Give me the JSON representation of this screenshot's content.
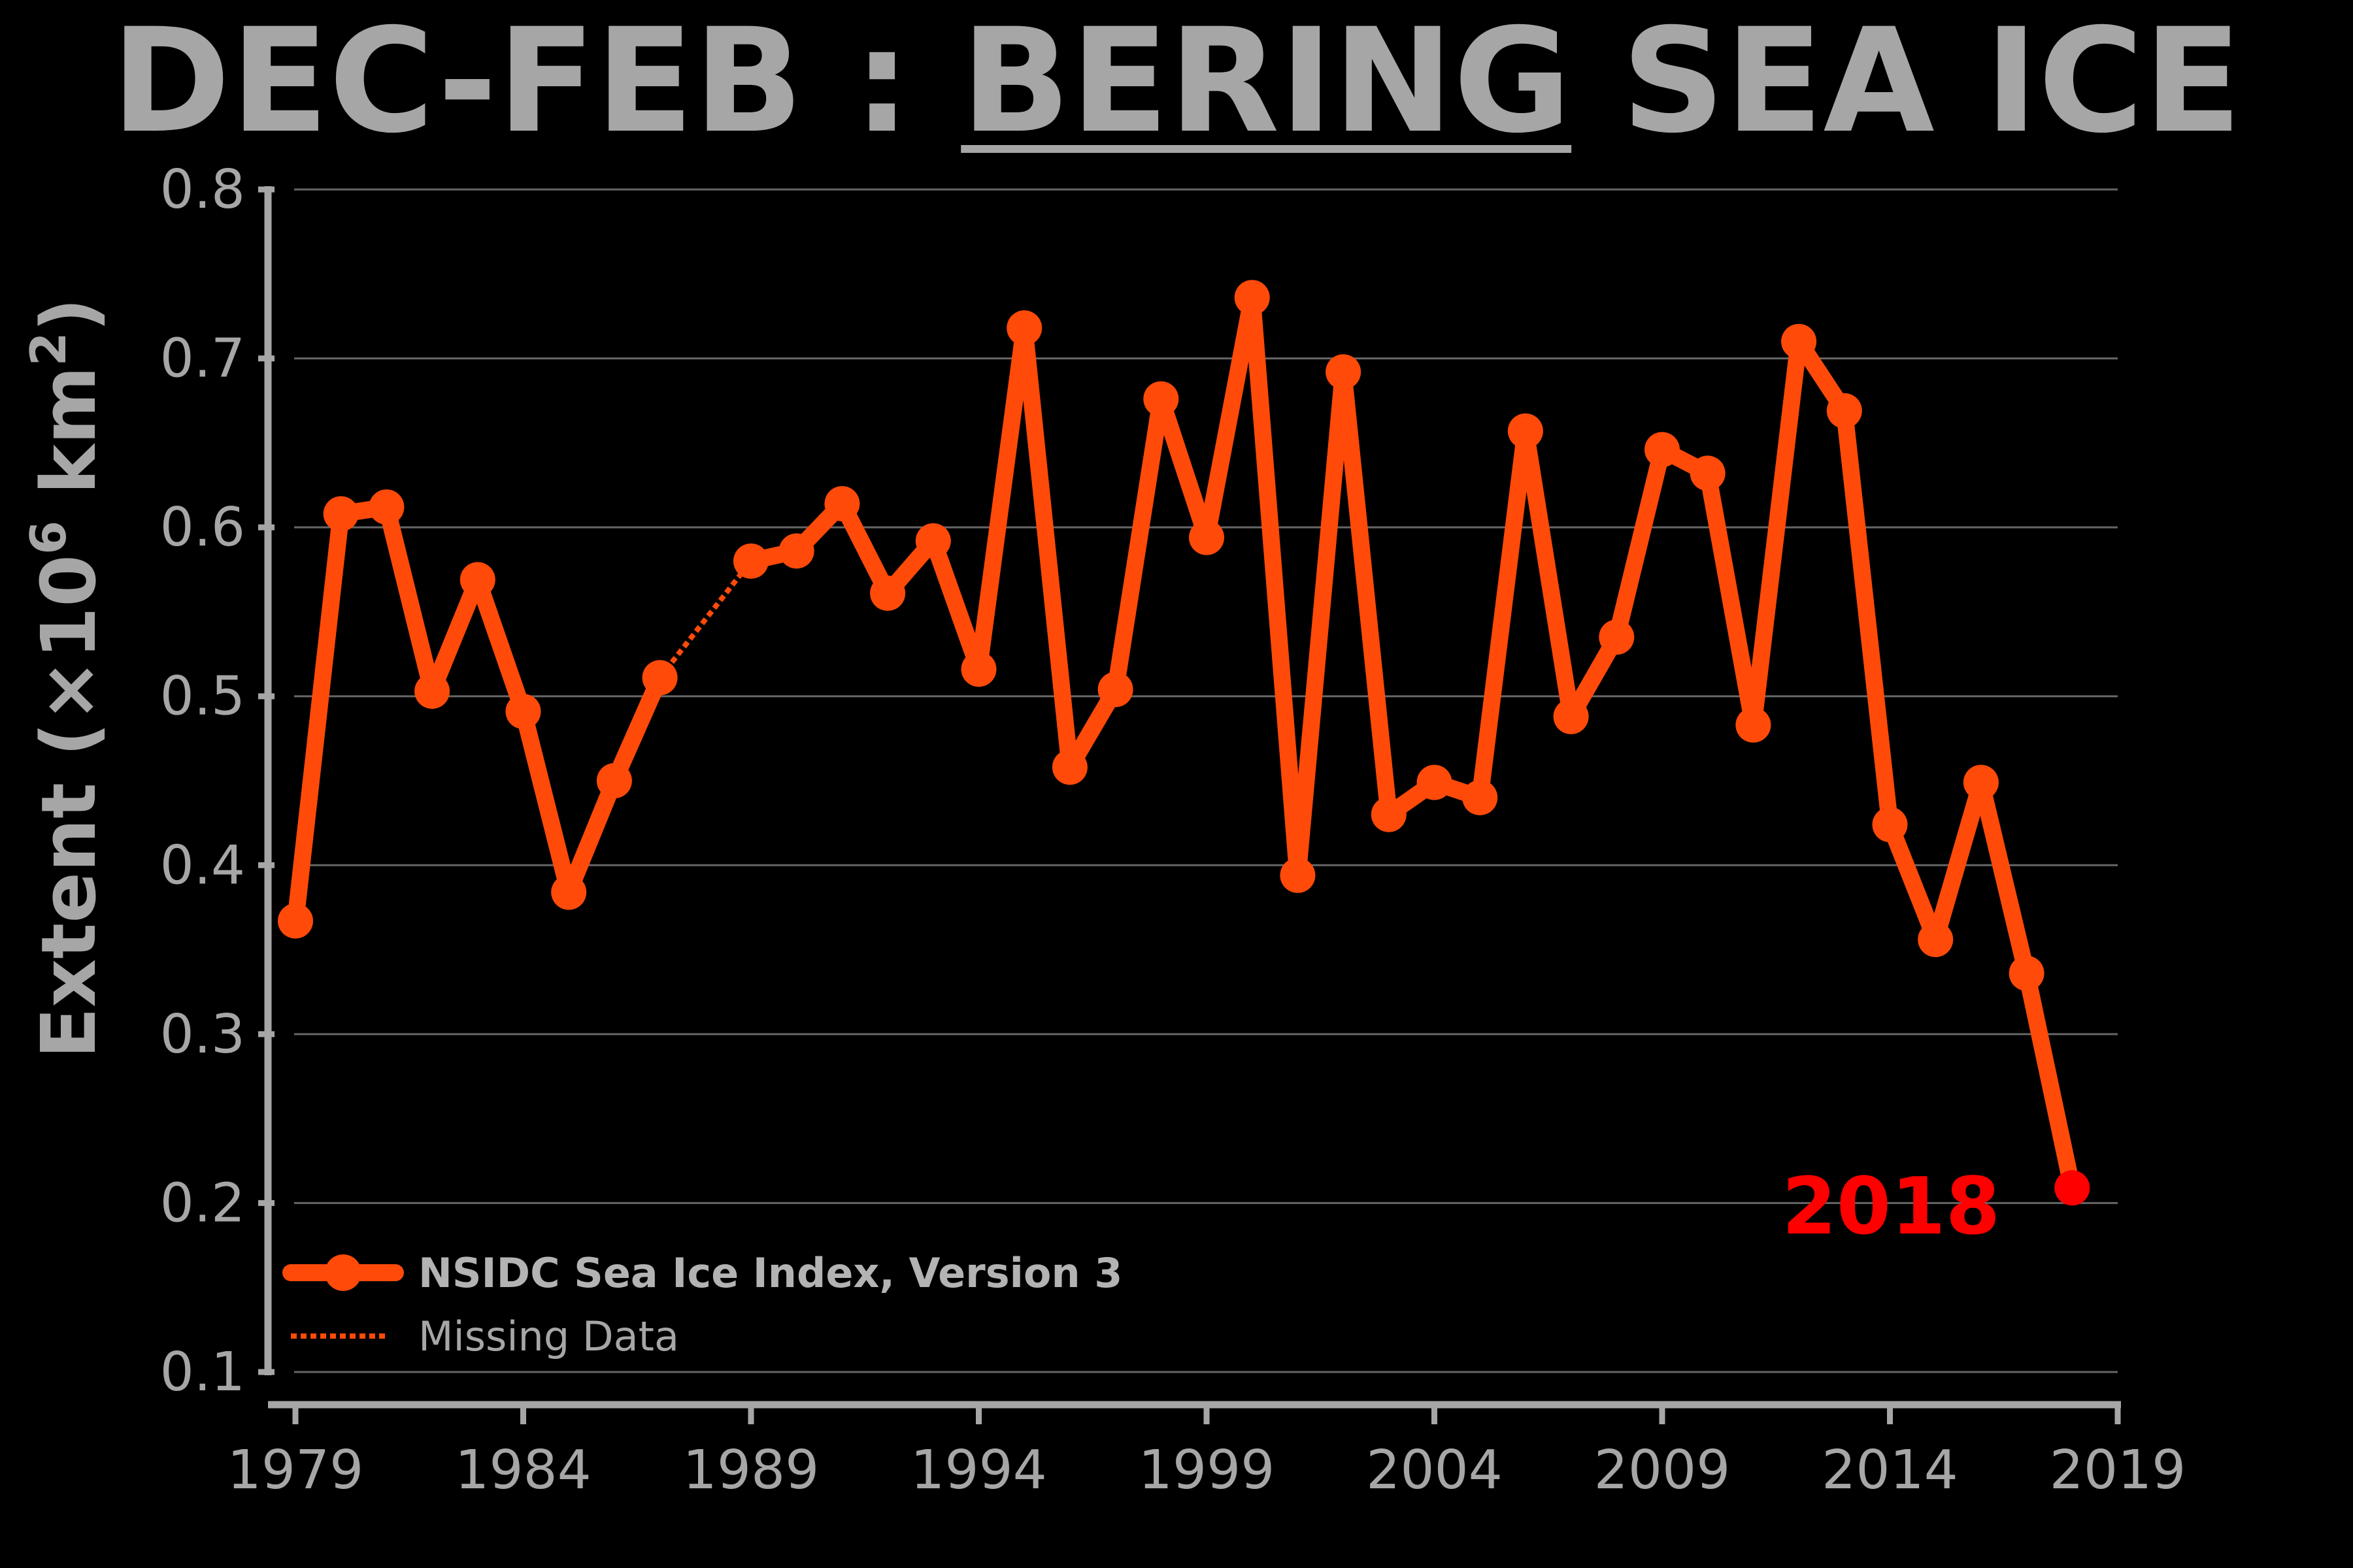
{
  "title": {
    "prefix": "DEC-FEB : ",
    "emphasis": "BERING",
    "suffix": " SEA ICE"
  },
  "colors": {
    "background": "#000000",
    "title": "#a6a6a6",
    "axis": "#a6a6a6",
    "grid": "#666666",
    "series": "#ff4a0a",
    "highlight": "#ff0000",
    "legend_primary": "#b3b3b3"
  },
  "chart_data": {
    "type": "line",
    "ylabel": "Extent (×10⁶ km²)",
    "ylabel_parts": {
      "main": "Extent (×10",
      "sup6": "6",
      "mid": " km",
      "sup2": "2",
      "end": ")"
    },
    "xlim": [
      1979,
      2019
    ],
    "ylim": [
      0.1,
      0.8
    ],
    "xticks": [
      "1979",
      "1984",
      "1989",
      "1994",
      "1999",
      "2004",
      "2009",
      "2014",
      "2019"
    ],
    "yticks": [
      "0.1",
      "0.2",
      "0.3",
      "0.4",
      "0.5",
      "0.6",
      "0.7",
      "0.8"
    ],
    "grid": true,
    "legend_placement": "bottom-left",
    "series": [
      {
        "name": "NSIDC Sea Ice Index, Version 3",
        "style": "solid-markers",
        "x": [
          1979,
          1980,
          1981,
          1982,
          1983,
          1984,
          1985,
          1986,
          1987,
          1989,
          1990,
          1991,
          1992,
          1993,
          1994,
          1995,
          1996,
          1997,
          1998,
          1999,
          2000,
          2001,
          2002,
          2003,
          2004,
          2005,
          2006,
          2007,
          2008,
          2009,
          2010,
          2011,
          2012,
          2013,
          2014,
          2015,
          2016,
          2017,
          2018
        ],
        "y": [
          0.367,
          0.608,
          0.612,
          0.503,
          0.569,
          0.491,
          0.384,
          0.45,
          0.511,
          0.58,
          0.586,
          0.614,
          0.561,
          0.592,
          0.516,
          0.718,
          0.458,
          0.504,
          0.676,
          0.594,
          0.736,
          0.394,
          0.692,
          0.43,
          0.449,
          0.44,
          0.657,
          0.488,
          0.535,
          0.646,
          0.632,
          0.483,
          0.71,
          0.669,
          0.424,
          0.356,
          0.449,
          0.336,
          0.209
        ]
      },
      {
        "name": "Missing Data",
        "style": "dotted",
        "x": [
          1987,
          1989
        ],
        "y": [
          0.511,
          0.58
        ]
      }
    ],
    "annotations": [
      {
        "text": "2018",
        "x": 2018,
        "y": 0.209
      }
    ]
  }
}
